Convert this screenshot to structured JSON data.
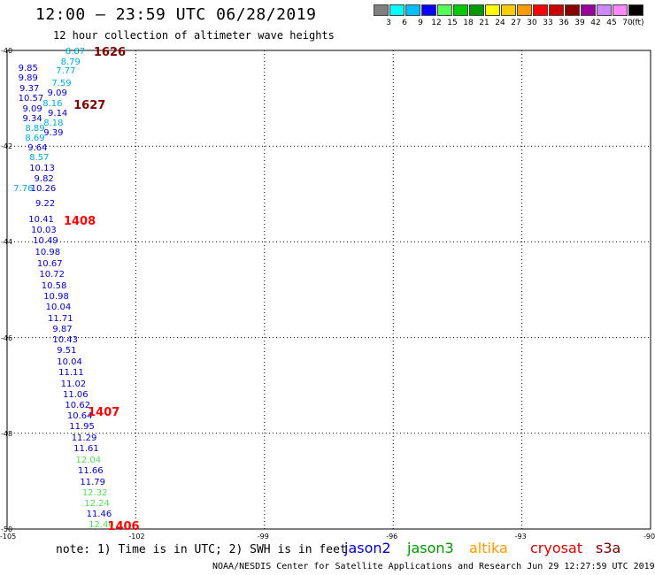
{
  "header": {
    "title": "12:00 – 23:59 UTC 06/28/2019",
    "subtitle": "12 hour collection of altimeter wave heights"
  },
  "colorbar": {
    "unit": "(ft)",
    "bins": [
      {
        "label": "3",
        "color": "#808080"
      },
      {
        "label": "6",
        "color": "#00ffff"
      },
      {
        "label": "9",
        "color": "#00bfff"
      },
      {
        "label": "12",
        "color": "#0000ff"
      },
      {
        "label": "15",
        "color": "#55ff55"
      },
      {
        "label": "18",
        "color": "#00cc00"
      },
      {
        "label": "21",
        "color": "#009900"
      },
      {
        "label": "24",
        "color": "#ffff00"
      },
      {
        "label": "27",
        "color": "#ffcc00"
      },
      {
        "label": "30",
        "color": "#ff9900"
      },
      {
        "label": "33",
        "color": "#ff0000"
      },
      {
        "label": "36",
        "color": "#cc0000"
      },
      {
        "label": "39",
        "color": "#880000"
      },
      {
        "label": "42",
        "color": "#990099"
      },
      {
        "label": "45",
        "color": "#cc88ff"
      },
      {
        "label": "70",
        "color": "#ff88ff"
      },
      {
        "label": "",
        "color": "#000000"
      }
    ]
  },
  "axes": {
    "lon_ticks": [
      "-105",
      "-102",
      "-99",
      "-96",
      "-93",
      "-90"
    ],
    "lat_ticks": [
      "-40",
      "-42",
      "-44",
      "-46",
      "-48",
      "-50"
    ]
  },
  "map_data": {
    "lon_range": [
      -105,
      -90
    ],
    "lat_range": [
      -50,
      -40
    ],
    "orbit_labels": [
      {
        "text": "1626",
        "lon": -102.98,
        "lat": -40.04,
        "color": "#7a0000"
      },
      {
        "text": "1627",
        "lon": -103.45,
        "lat": -41.14,
        "color": "#7a0000"
      },
      {
        "text": "1408",
        "lon": -103.68,
        "lat": -43.56,
        "color": "#ff0000"
      },
      {
        "text": "1407",
        "lon": -103.12,
        "lat": -47.56,
        "color": "#ff0000"
      },
      {
        "text": "1406",
        "lon": -102.66,
        "lat": -49.95,
        "color": "#ff0000"
      }
    ],
    "wave_heights": [
      {
        "text": "8.87",
        "lon": -103.64,
        "lat": -40.04,
        "color": "#00aadd"
      },
      {
        "text": "8.79",
        "lon": -103.75,
        "lat": -40.26,
        "color": "#00aadd"
      },
      {
        "text": "9.85",
        "lon": -104.74,
        "lat": -40.38,
        "color": "#0000cc"
      },
      {
        "text": "7.77",
        "lon": -103.86,
        "lat": -40.44,
        "color": "#00aadd"
      },
      {
        "text": "9.89",
        "lon": -104.74,
        "lat": -40.59,
        "color": "#0000cc"
      },
      {
        "text": "7.59",
        "lon": -103.96,
        "lat": -40.7,
        "color": "#00aadd"
      },
      {
        "text": "9.37",
        "lon": -104.71,
        "lat": -40.81,
        "color": "#0000cc"
      },
      {
        "text": "9.09",
        "lon": -104.06,
        "lat": -40.91,
        "color": "#0000cc"
      },
      {
        "text": "10.57",
        "lon": -104.74,
        "lat": -41.02,
        "color": "#0000cc"
      },
      {
        "text": "8.16",
        "lon": -104.17,
        "lat": -41.12,
        "color": "#00aadd"
      },
      {
        "text": "9.09",
        "lon": -104.64,
        "lat": -41.24,
        "color": "#0000cc"
      },
      {
        "text": "9.14",
        "lon": -104.05,
        "lat": -41.33,
        "color": "#0000cc"
      },
      {
        "text": "9.34",
        "lon": -104.64,
        "lat": -41.45,
        "color": "#0000cc"
      },
      {
        "text": "8.18",
        "lon": -104.15,
        "lat": -41.54,
        "color": "#00aadd"
      },
      {
        "text": "8.89",
        "lon": -104.58,
        "lat": -41.65,
        "color": "#00aadd"
      },
      {
        "text": "9.39",
        "lon": -104.15,
        "lat": -41.74,
        "color": "#0000cc"
      },
      {
        "text": "8.69",
        "lon": -104.58,
        "lat": -41.85,
        "color": "#00aadd"
      },
      {
        "text": "9.64",
        "lon": -104.52,
        "lat": -42.05,
        "color": "#0000cc"
      },
      {
        "text": "8.57",
        "lon": -104.48,
        "lat": -42.26,
        "color": "#00aadd"
      },
      {
        "text": "10.13",
        "lon": -104.48,
        "lat": -42.48,
        "color": "#0000cc"
      },
      {
        "text": "9.82",
        "lon": -104.37,
        "lat": -42.7,
        "color": "#0000cc"
      },
      {
        "text": "7.76",
        "lon": -104.85,
        "lat": -42.9,
        "color": "#00aadd"
      },
      {
        "text": "10.26",
        "lon": -104.45,
        "lat": -42.91,
        "color": "#0000cc"
      },
      {
        "text": "9.22",
        "lon": -104.34,
        "lat": -43.22,
        "color": "#0000cc"
      },
      {
        "text": "10.41",
        "lon": -104.5,
        "lat": -43.55,
        "color": "#0000cc"
      },
      {
        "text": "10.03",
        "lon": -104.44,
        "lat": -43.78,
        "color": "#0000cc"
      },
      {
        "text": "10.49",
        "lon": -104.4,
        "lat": -44.0,
        "color": "#0000cc"
      },
      {
        "text": "10.98",
        "lon": -104.35,
        "lat": -44.24,
        "color": "#0000cc"
      },
      {
        "text": "10.67",
        "lon": -104.3,
        "lat": -44.47,
        "color": "#0000cc"
      },
      {
        "text": "10.72",
        "lon": -104.25,
        "lat": -44.7,
        "color": "#0000cc"
      },
      {
        "text": "10.58",
        "lon": -104.2,
        "lat": -44.94,
        "color": "#0000cc"
      },
      {
        "text": "10.98",
        "lon": -104.15,
        "lat": -45.16,
        "color": "#0000cc"
      },
      {
        "text": "10.04",
        "lon": -104.1,
        "lat": -45.38,
        "color": "#0000cc"
      },
      {
        "text": "11.71",
        "lon": -104.05,
        "lat": -45.61,
        "color": "#0000cc"
      },
      {
        "text": "9.87",
        "lon": -103.94,
        "lat": -45.84,
        "color": "#0000cc"
      },
      {
        "text": "10.43",
        "lon": -103.94,
        "lat": -46.06,
        "color": "#0000cc"
      },
      {
        "text": "9.51",
        "lon": -103.84,
        "lat": -46.29,
        "color": "#0000cc"
      },
      {
        "text": "10.04",
        "lon": -103.84,
        "lat": -46.52,
        "color": "#0000cc"
      },
      {
        "text": "11.11",
        "lon": -103.8,
        "lat": -46.75,
        "color": "#0000cc"
      },
      {
        "text": "11.02",
        "lon": -103.75,
        "lat": -46.98,
        "color": "#0000cc"
      },
      {
        "text": "11.06",
        "lon": -103.7,
        "lat": -47.2,
        "color": "#0000cc"
      },
      {
        "text": "10.62",
        "lon": -103.65,
        "lat": -47.43,
        "color": "#0000cc"
      },
      {
        "text": "10.64",
        "lon": -103.6,
        "lat": -47.66,
        "color": "#0000cc"
      },
      {
        "text": "11.95",
        "lon": -103.55,
        "lat": -47.88,
        "color": "#0000cc"
      },
      {
        "text": "11.29",
        "lon": -103.5,
        "lat": -48.12,
        "color": "#0000cc"
      },
      {
        "text": "11.61",
        "lon": -103.45,
        "lat": -48.34,
        "color": "#0000cc"
      },
      {
        "text": "12.04",
        "lon": -103.4,
        "lat": -48.57,
        "color": "#55dd55"
      },
      {
        "text": "11.66",
        "lon": -103.35,
        "lat": -48.8,
        "color": "#0000cc"
      },
      {
        "text": "11.79",
        "lon": -103.3,
        "lat": -49.03,
        "color": "#0000cc"
      },
      {
        "text": "12.32",
        "lon": -103.25,
        "lat": -49.26,
        "color": "#55dd55"
      },
      {
        "text": "12.24",
        "lon": -103.2,
        "lat": -49.48,
        "color": "#55dd55"
      },
      {
        "text": "11.46",
        "lon": -103.15,
        "lat": -49.7,
        "color": "#0000cc"
      },
      {
        "text": "12.40",
        "lon": -103.1,
        "lat": -49.93,
        "color": "#55dd55"
      }
    ]
  },
  "footer": {
    "note": "note:  1) Time is in UTC; 2) SWH is in feet",
    "credit": "NOAA/NESDIS Center for Satellite Applications and Research    Jun 29 12:27:59 UTC 2019",
    "legend": [
      {
        "label": "jason2",
        "color": "#0000cc"
      },
      {
        "label": "jason3",
        "color": "#009900"
      },
      {
        "label": "altika",
        "color": "#ff9900"
      },
      {
        "label": "cryosat",
        "color": "#dd0000"
      },
      {
        "label": "s3a",
        "color": "#7a0000"
      }
    ]
  }
}
